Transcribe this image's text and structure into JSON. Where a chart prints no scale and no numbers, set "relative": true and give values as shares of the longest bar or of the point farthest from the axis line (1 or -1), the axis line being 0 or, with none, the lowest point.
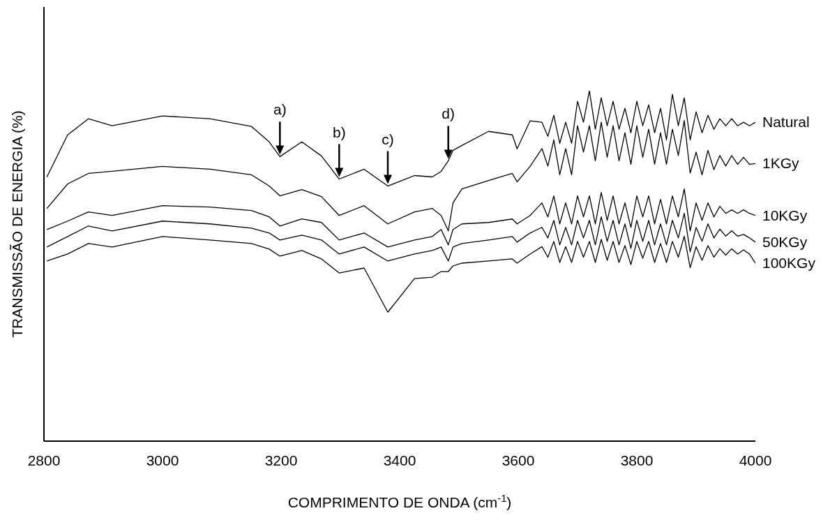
{
  "chart_data": {
    "type": "line",
    "relative": true,
    "xlabel": "COMPRIMENTO DE ONDA (cm$^{-1}$)",
    "ylabel": "TRANSMISSÃO DE ENERGIA (%)",
    "xlim": [
      2800,
      4000
    ],
    "xticks": [
      2800,
      3000,
      3200,
      3400,
      3600,
      3800,
      4000
    ],
    "grid": false,
    "legend": false,
    "x": [
      2805,
      2840,
      2875,
      2915,
      3000,
      3080,
      3150,
      3180,
      3198,
      3235,
      3268,
      3298,
      3340,
      3380,
      3425,
      3455,
      3470,
      3482,
      3490,
      3505,
      3550,
      3590,
      3598,
      3620,
      3640,
      3650,
      3660,
      3670,
      3680,
      3690,
      3700,
      3710,
      3720,
      3730,
      3740,
      3750,
      3760,
      3770,
      3780,
      3790,
      3800,
      3810,
      3820,
      3830,
      3840,
      3850,
      3860,
      3870,
      3880,
      3890,
      3900,
      3910,
      3920,
      3930,
      3940,
      3950,
      3960,
      3970,
      3980,
      3990,
      4000
    ],
    "series": [
      {
        "name": "Natural",
        "color": "#000000",
        "values": [
          0.754,
          0.874,
          0.92,
          0.9,
          0.928,
          0.92,
          0.898,
          0.854,
          0.812,
          0.854,
          0.814,
          0.748,
          0.776,
          0.728,
          0.758,
          0.754,
          0.77,
          0.8,
          0.83,
          0.844,
          0.884,
          0.874,
          0.834,
          0.914,
          0.91,
          0.87,
          0.93,
          0.85,
          0.91,
          0.85,
          0.97,
          0.91,
          1.0,
          0.89,
          0.98,
          0.9,
          0.97,
          0.89,
          0.95,
          0.88,
          0.97,
          0.9,
          0.96,
          0.88,
          0.95,
          0.86,
          0.99,
          0.9,
          0.98,
          0.86,
          0.94,
          0.88,
          0.93,
          0.89,
          0.92,
          0.9,
          0.92,
          0.9,
          0.91,
          0.9,
          0.91
        ]
      },
      {
        "name": "1KGy",
        "color": "#000000",
        "values": [
          0.664,
          0.734,
          0.764,
          0.77,
          0.784,
          0.776,
          0.76,
          0.728,
          0.7,
          0.718,
          0.698,
          0.644,
          0.672,
          0.62,
          0.654,
          0.664,
          0.644,
          0.6,
          0.68,
          0.72,
          0.744,
          0.764,
          0.74,
          0.784,
          0.835,
          0.785,
          0.86,
          0.76,
          0.835,
          0.76,
          0.9,
          0.825,
          0.9,
          0.8,
          0.91,
          0.81,
          0.9,
          0.8,
          0.88,
          0.79,
          0.9,
          0.81,
          0.89,
          0.79,
          0.88,
          0.79,
          0.89,
          0.815,
          0.915,
          0.765,
          0.825,
          0.76,
          0.83,
          0.775,
          0.815,
          0.785,
          0.815,
          0.79,
          0.81,
          0.79,
          0.792
        ]
      },
      {
        "name": "10KGy",
        "color": "#000000",
        "values": [
          0.604,
          0.628,
          0.654,
          0.644,
          0.672,
          0.668,
          0.658,
          0.64,
          0.614,
          0.634,
          0.624,
          0.574,
          0.594,
          0.554,
          0.574,
          0.584,
          0.604,
          0.56,
          0.604,
          0.62,
          0.624,
          0.634,
          0.62,
          0.644,
          0.68,
          0.64,
          0.7,
          0.62,
          0.68,
          0.62,
          0.7,
          0.64,
          0.7,
          0.62,
          0.71,
          0.63,
          0.7,
          0.62,
          0.68,
          0.61,
          0.7,
          0.64,
          0.7,
          0.62,
          0.69,
          0.62,
          0.7,
          0.64,
          0.72,
          0.6,
          0.68,
          0.63,
          0.68,
          0.64,
          0.67,
          0.65,
          0.66,
          0.65,
          0.66,
          0.65,
          0.644
        ]
      },
      {
        "name": "50KGy",
        "color": "#000000",
        "values": [
          0.554,
          0.584,
          0.614,
          0.6,
          0.628,
          0.62,
          0.608,
          0.594,
          0.574,
          0.588,
          0.574,
          0.534,
          0.554,
          0.514,
          0.534,
          0.544,
          0.554,
          0.514,
          0.554,
          0.564,
          0.574,
          0.584,
          0.568,
          0.594,
          0.61,
          0.58,
          0.63,
          0.56,
          0.61,
          0.56,
          0.63,
          0.58,
          0.63,
          0.56,
          0.64,
          0.57,
          0.63,
          0.56,
          0.62,
          0.55,
          0.63,
          0.57,
          0.63,
          0.56,
          0.62,
          0.56,
          0.63,
          0.58,
          0.65,
          0.54,
          0.61,
          0.57,
          0.62,
          0.58,
          0.605,
          0.585,
          0.6,
          0.585,
          0.59,
          0.58,
          0.568
        ]
      },
      {
        "name": "100KGy",
        "color": "#000000",
        "values": [
          0.514,
          0.534,
          0.564,
          0.554,
          0.584,
          0.574,
          0.564,
          0.548,
          0.528,
          0.544,
          0.52,
          0.48,
          0.494,
          0.368,
          0.464,
          0.468,
          0.484,
          0.484,
          0.5,
          0.508,
          0.514,
          0.52,
          0.508,
          0.534,
          0.555,
          0.525,
          0.57,
          0.51,
          0.555,
          0.51,
          0.57,
          0.525,
          0.57,
          0.51,
          0.576,
          0.516,
          0.57,
          0.51,
          0.558,
          0.504,
          0.57,
          0.522,
          0.57,
          0.51,
          0.564,
          0.51,
          0.57,
          0.525,
          0.585,
          0.495,
          0.555,
          0.516,
          0.558,
          0.525,
          0.549,
          0.531,
          0.549,
          0.534,
          0.546,
          0.534,
          0.508
        ]
      }
    ],
    "annotations": [
      {
        "text": "a)",
        "x": 3198,
        "y": 0.812
      },
      {
        "text": "b)",
        "x": 3298,
        "y": 0.748
      },
      {
        "text": "c)",
        "x": 3380,
        "y": 0.728
      },
      {
        "text": "d)",
        "x": 3482,
        "y": 0.8
      }
    ]
  }
}
